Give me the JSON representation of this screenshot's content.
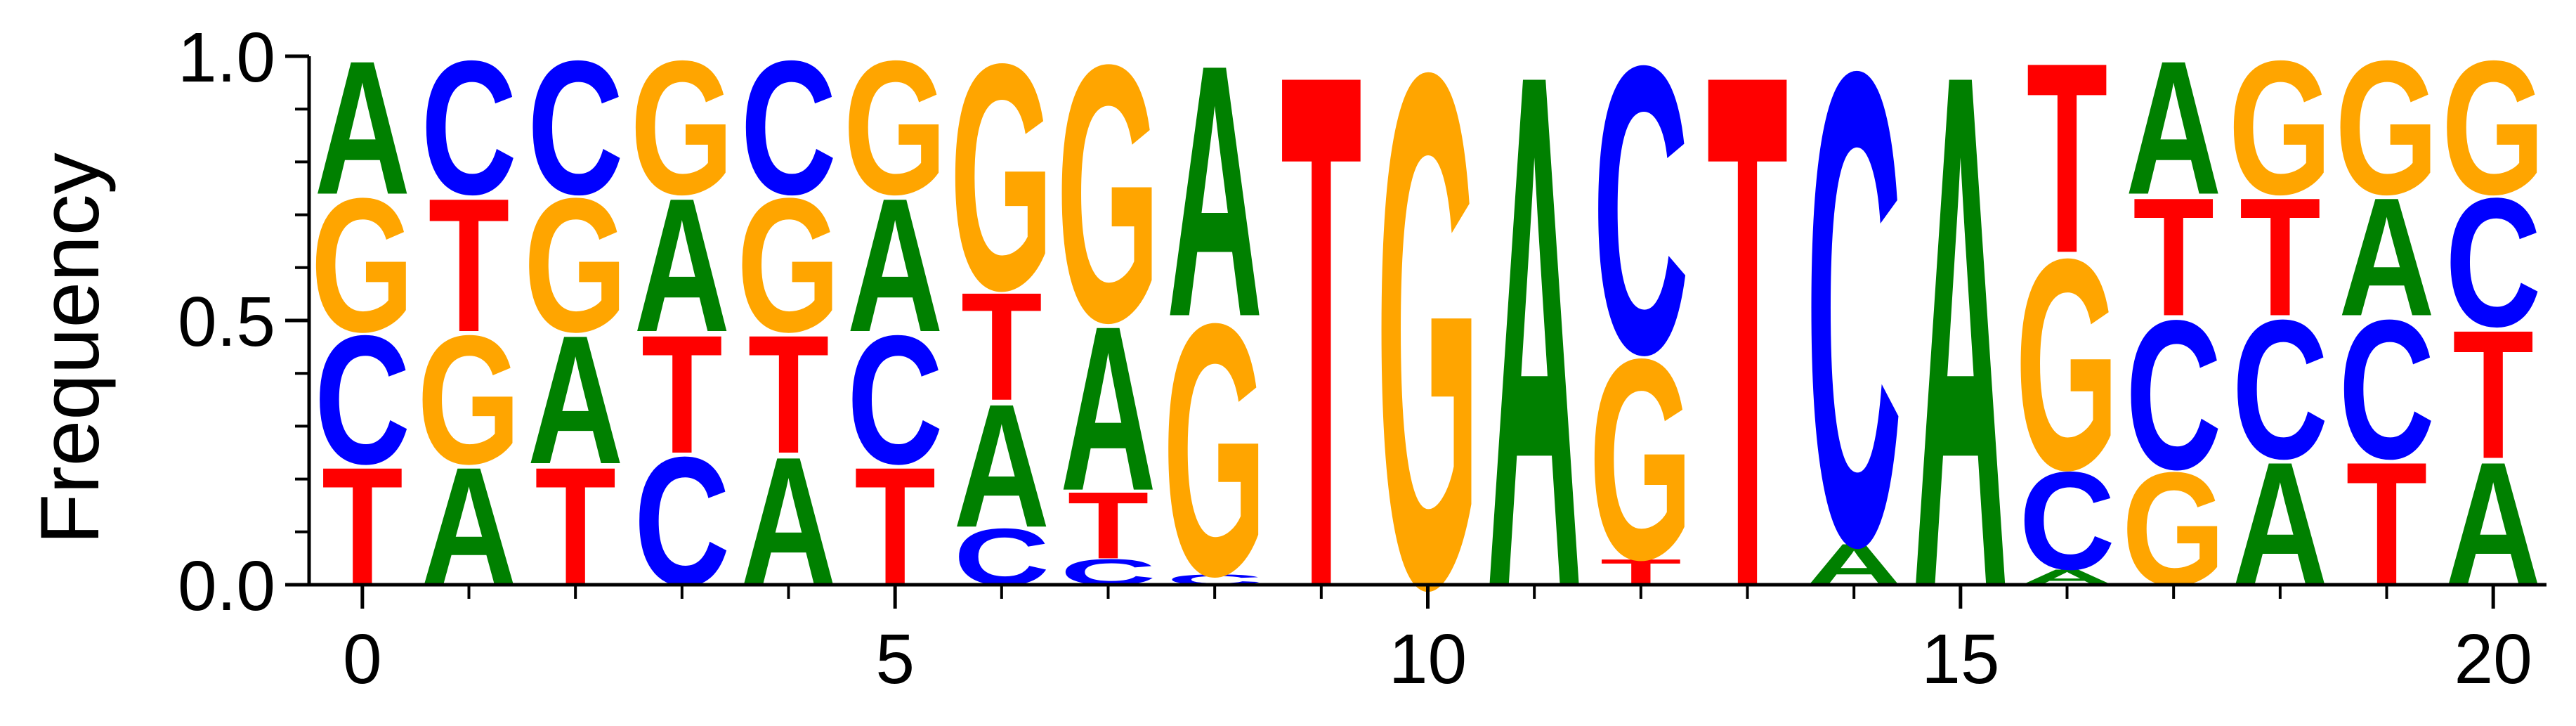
{
  "chart_data": {
    "type": "sequence-logo",
    "ylabel": "Frequency",
    "ylim": [
      0,
      1
    ],
    "xlim": [
      -0.5,
      20.5
    ],
    "x_ticks": [
      0,
      5,
      10,
      15,
      20
    ],
    "x_tick_labels": [
      "0",
      "5",
      "10",
      "15",
      "20"
    ],
    "y_ticks": [
      0,
      0.5,
      1
    ],
    "y_tick_labels": [
      "0.0",
      "0.5",
      "1.0"
    ],
    "colors": {
      "A": "#008000",
      "C": "#0000ff",
      "G": "#ffa500",
      "T": "#ff0000"
    },
    "positions": [
      {
        "pos": 0,
        "stack": [
          [
            "T",
            0.23
          ],
          [
            "C",
            0.25
          ],
          [
            "G",
            0.26
          ],
          [
            "A",
            0.26
          ]
        ]
      },
      {
        "pos": 1,
        "stack": [
          [
            "A",
            0.23
          ],
          [
            "G",
            0.25
          ],
          [
            "T",
            0.26
          ],
          [
            "C",
            0.26
          ]
        ]
      },
      {
        "pos": 2,
        "stack": [
          [
            "T",
            0.23
          ],
          [
            "A",
            0.25
          ],
          [
            "G",
            0.26
          ],
          [
            "C",
            0.26
          ]
        ]
      },
      {
        "pos": 3,
        "stack": [
          [
            "C",
            0.25
          ],
          [
            "T",
            0.23
          ],
          [
            "A",
            0.26
          ],
          [
            "G",
            0.26
          ]
        ]
      },
      {
        "pos": 4,
        "stack": [
          [
            "A",
            0.25
          ],
          [
            "T",
            0.23
          ],
          [
            "G",
            0.26
          ],
          [
            "C",
            0.26
          ]
        ]
      },
      {
        "pos": 5,
        "stack": [
          [
            "T",
            0.23
          ],
          [
            "C",
            0.25
          ],
          [
            "A",
            0.26
          ],
          [
            "G",
            0.26
          ]
        ]
      },
      {
        "pos": 6,
        "stack": [
          [
            "C",
            0.11
          ],
          [
            "A",
            0.24
          ],
          [
            "T",
            0.21
          ],
          [
            "G",
            0.44
          ]
        ]
      },
      {
        "pos": 7,
        "stack": [
          [
            "C",
            0.05
          ],
          [
            "T",
            0.13
          ],
          [
            "A",
            0.32
          ],
          [
            "G",
            0.5
          ]
        ]
      },
      {
        "pos": 8,
        "stack": [
          [
            "C",
            0.02
          ],
          [
            "G",
            0.49
          ],
          [
            "A",
            0.49
          ]
        ]
      },
      {
        "pos": 9,
        "stack": [
          [
            "T",
            1.0
          ]
        ]
      },
      {
        "pos": 10,
        "stack": [
          [
            "G",
            1.0
          ]
        ]
      },
      {
        "pos": 11,
        "stack": [
          [
            "A",
            1.0
          ]
        ]
      },
      {
        "pos": 12,
        "stack": [
          [
            "T",
            0.05
          ],
          [
            "G",
            0.39
          ],
          [
            "C",
            0.56
          ]
        ]
      },
      {
        "pos": 13,
        "stack": [
          [
            "T",
            1.0
          ]
        ]
      },
      {
        "pos": 14,
        "stack": [
          [
            "A",
            0.08
          ],
          [
            "C",
            0.92
          ]
        ]
      },
      {
        "pos": 15,
        "stack": [
          [
            "A",
            1.0
          ]
        ]
      },
      {
        "pos": 16,
        "stack": [
          [
            "A",
            0.03
          ],
          [
            "C",
            0.19
          ],
          [
            "G",
            0.41
          ],
          [
            "T",
            0.37
          ]
        ]
      },
      {
        "pos": 17,
        "stack": [
          [
            "G",
            0.22
          ],
          [
            "C",
            0.29
          ],
          [
            "T",
            0.23
          ],
          [
            "A",
            0.26
          ]
        ]
      },
      {
        "pos": 18,
        "stack": [
          [
            "A",
            0.24
          ],
          [
            "C",
            0.27
          ],
          [
            "T",
            0.23
          ],
          [
            "G",
            0.26
          ]
        ]
      },
      {
        "pos": 19,
        "stack": [
          [
            "T",
            0.24
          ],
          [
            "C",
            0.27
          ],
          [
            "A",
            0.23
          ],
          [
            "G",
            0.26
          ]
        ]
      },
      {
        "pos": 20,
        "stack": [
          [
            "A",
            0.24
          ],
          [
            "T",
            0.25
          ],
          [
            "C",
            0.25
          ],
          [
            "G",
            0.26
          ]
        ]
      }
    ]
  }
}
